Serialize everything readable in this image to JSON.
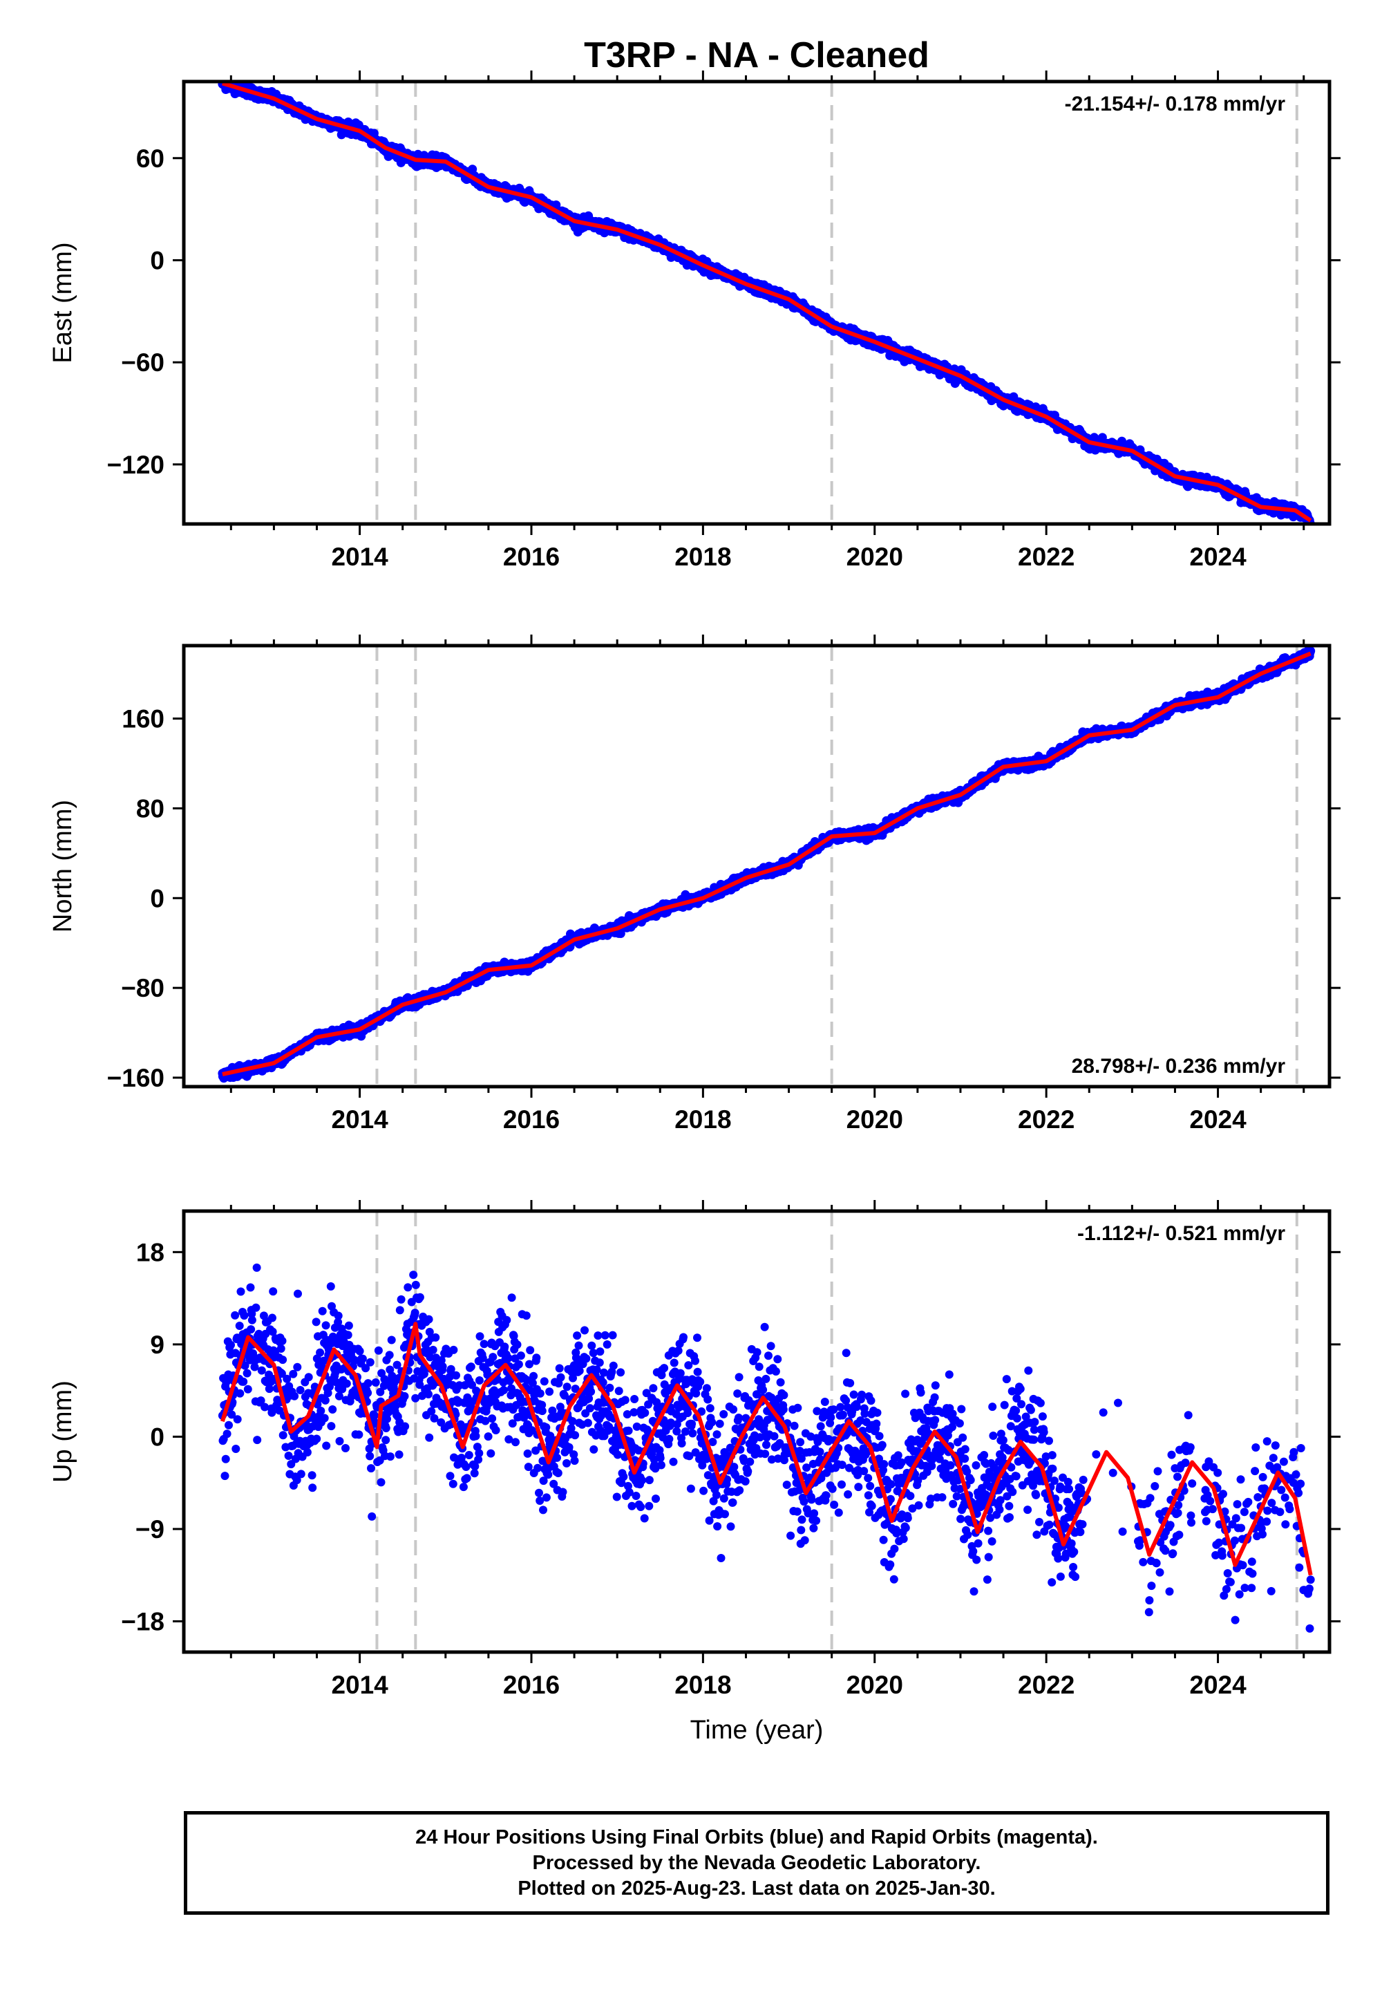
{
  "title": "T3RP  - NA - Cleaned",
  "footer": {
    "lines": [
      "24 Hour Positions Using Final Orbits (blue) and Rapid Orbits (magenta).",
      "Processed by the Nevada Geodetic Laboratory.",
      "Plotted on 2025-Aug-23. Last data on 2025-Jan-30."
    ]
  },
  "colors": {
    "data": "#0000ff",
    "model": "#ff0000",
    "dashed": "#c8c8c8",
    "frame": "#000000"
  },
  "chart_data": [
    {
      "type": "scatter",
      "ylabel": "East (mm)",
      "xlabel": "",
      "rate_label": "-21.154+/- 0.178 mm/yr",
      "rate_position": "top-right",
      "xlim": [
        2011.95,
        2025.3
      ],
      "ylim": [
        -155,
        105
      ],
      "xticks": [
        2014,
        2016,
        2018,
        2020,
        2022,
        2024
      ],
      "yticks": [
        60,
        0,
        -60,
        -120
      ],
      "xtick_labels": [
        "2014",
        "2016",
        "2018",
        "2020",
        "2022",
        "2024"
      ],
      "ytick_labels": [
        "60",
        "0",
        "−60",
        "−120"
      ],
      "dashed_lines_x": [
        2014.2,
        2014.65,
        2019.5,
        2024.92
      ],
      "model_points": [
        [
          2012.4,
          104
        ],
        [
          2013.0,
          95
        ],
        [
          2013.5,
          83
        ],
        [
          2014.0,
          76
        ],
        [
          2014.3,
          66
        ],
        [
          2014.65,
          59
        ],
        [
          2015.0,
          58
        ],
        [
          2015.5,
          43
        ],
        [
          2016.0,
          37
        ],
        [
          2016.5,
          23
        ],
        [
          2017.0,
          18
        ],
        [
          2017.5,
          9
        ],
        [
          2018.0,
          -3
        ],
        [
          2018.5,
          -14
        ],
        [
          2019.0,
          -23
        ],
        [
          2019.5,
          -39
        ],
        [
          2020.0,
          -48
        ],
        [
          2020.5,
          -58
        ],
        [
          2021.0,
          -68
        ],
        [
          2021.5,
          -82
        ],
        [
          2022.0,
          -92
        ],
        [
          2022.5,
          -107
        ],
        [
          2023.0,
          -112
        ],
        [
          2023.5,
          -127
        ],
        [
          2024.0,
          -132
        ],
        [
          2024.5,
          -145
        ],
        [
          2024.9,
          -147
        ],
        [
          2025.08,
          -153
        ]
      ],
      "trend": {
        "x0": 2012.4,
        "y0": 103,
        "x1": 2025.08,
        "y1": -153
      },
      "seasonal_amplitude": 1.5,
      "noise": 1.5,
      "gaps": []
    },
    {
      "type": "scatter",
      "ylabel": "North (mm)",
      "xlabel": "",
      "rate_label": "28.798+/- 0.236 mm/yr",
      "rate_position": "bottom-right",
      "xlim": [
        2011.95,
        2025.3
      ],
      "ylim": [
        -168,
        225
      ],
      "xticks": [
        2014,
        2016,
        2018,
        2020,
        2022,
        2024
      ],
      "yticks": [
        160,
        80,
        0,
        -80,
        -160
      ],
      "xtick_labels": [
        "2014",
        "2016",
        "2018",
        "2020",
        "2022",
        "2024"
      ],
      "ytick_labels": [
        "160",
        "80",
        "0",
        "−80",
        "−160"
      ],
      "dashed_lines_x": [
        2014.2,
        2014.65,
        2019.5,
        2024.92
      ],
      "model_points": [
        [
          2012.4,
          -157
        ],
        [
          2013.0,
          -147
        ],
        [
          2013.5,
          -124
        ],
        [
          2014.0,
          -117
        ],
        [
          2014.5,
          -95
        ],
        [
          2015.0,
          -84
        ],
        [
          2015.5,
          -64
        ],
        [
          2016.0,
          -60
        ],
        [
          2016.5,
          -37
        ],
        [
          2017.0,
          -27
        ],
        [
          2017.5,
          -10
        ],
        [
          2018.0,
          0
        ],
        [
          2018.5,
          18
        ],
        [
          2019.0,
          30
        ],
        [
          2019.5,
          55
        ],
        [
          2020.0,
          58
        ],
        [
          2020.5,
          80
        ],
        [
          2021.0,
          92
        ],
        [
          2021.5,
          117
        ],
        [
          2022.0,
          122
        ],
        [
          2022.5,
          145
        ],
        [
          2023.0,
          150
        ],
        [
          2023.5,
          172
        ],
        [
          2024.0,
          179
        ],
        [
          2024.5,
          200
        ],
        [
          2025.08,
          218
        ]
      ],
      "trend": {
        "x0": 2012.4,
        "y0": -157,
        "x1": 2025.08,
        "y1": 218
      },
      "seasonal_amplitude": 2,
      "noise": 2,
      "gaps": []
    },
    {
      "type": "scatter",
      "ylabel": "Up (mm)",
      "xlabel": "Time (year)",
      "rate_label": "-1.112+/- 0.521 mm/yr",
      "rate_position": "top-right",
      "xlim": [
        2011.95,
        2025.3
      ],
      "ylim": [
        -21,
        22
      ],
      "xticks": [
        2014,
        2016,
        2018,
        2020,
        2022,
        2024
      ],
      "yticks": [
        18,
        9,
        0,
        -9,
        -18
      ],
      "xtick_labels": [
        "2014",
        "2016",
        "2018",
        "2020",
        "2022",
        "2024"
      ],
      "ytick_labels": [
        "18",
        "9",
        "0",
        "−9",
        "−18"
      ],
      "dashed_lines_x": [
        2014.2,
        2014.65,
        2019.5,
        2024.92
      ],
      "model_points": [
        [
          2012.4,
          1.5
        ],
        [
          2012.7,
          9.7
        ],
        [
          2013.0,
          7
        ],
        [
          2013.2,
          0.5
        ],
        [
          2013.4,
          2
        ],
        [
          2013.7,
          8.5
        ],
        [
          2013.95,
          6
        ],
        [
          2014.2,
          -1
        ],
        [
          2014.25,
          3
        ],
        [
          2014.45,
          4
        ],
        [
          2014.65,
          11
        ],
        [
          2014.7,
          8
        ],
        [
          2014.95,
          5
        ],
        [
          2015.2,
          -1
        ],
        [
          2015.45,
          5
        ],
        [
          2015.7,
          7
        ],
        [
          2015.95,
          4
        ],
        [
          2016.2,
          -2.5
        ],
        [
          2016.45,
          3
        ],
        [
          2016.7,
          6
        ],
        [
          2016.95,
          3
        ],
        [
          2017.2,
          -3.5
        ],
        [
          2017.45,
          1
        ],
        [
          2017.7,
          5
        ],
        [
          2017.95,
          2
        ],
        [
          2018.2,
          -4.5
        ],
        [
          2018.45,
          0
        ],
        [
          2018.7,
          3.8
        ],
        [
          2018.95,
          1
        ],
        [
          2019.2,
          -5.5
        ],
        [
          2019.45,
          -2
        ],
        [
          2019.7,
          1.5
        ],
        [
          2019.95,
          -1
        ],
        [
          2020.2,
          -8.2
        ],
        [
          2020.45,
          -3
        ],
        [
          2020.7,
          0.5
        ],
        [
          2020.95,
          -2
        ],
        [
          2021.2,
          -9.3
        ],
        [
          2021.45,
          -4
        ],
        [
          2021.7,
          -0.5
        ],
        [
          2021.95,
          -3
        ],
        [
          2022.2,
          -10.5
        ],
        [
          2022.45,
          -6
        ],
        [
          2022.7,
          -1.5
        ],
        [
          2022.95,
          -4
        ],
        [
          2023.2,
          -11.5
        ],
        [
          2023.45,
          -7
        ],
        [
          2023.7,
          -2.5
        ],
        [
          2023.95,
          -5
        ],
        [
          2024.2,
          -12.5
        ],
        [
          2024.45,
          -8
        ],
        [
          2024.7,
          -3.5
        ],
        [
          2024.9,
          -6
        ],
        [
          2025.08,
          -13.5
        ]
      ],
      "trend": {
        "x0": 2012.4,
        "y0": 4,
        "x1": 2025.08,
        "y1": -9
      },
      "seasonal_amplitude": 5,
      "noise": 3,
      "gaps": [
        [
          2022.45,
          2023.05
        ],
        [
          2023.7,
          2023.85
        ]
      ]
    }
  ]
}
